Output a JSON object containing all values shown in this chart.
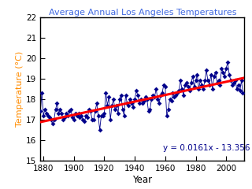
{
  "title": "Average Annual Los Angeles Temperatures",
  "xlabel": "Year",
  "ylabel": "Temperature (°C)",
  "xlim": [
    1878,
    2012
  ],
  "ylim": [
    15,
    22
  ],
  "yticks": [
    15,
    16,
    17,
    18,
    19,
    20,
    21,
    22
  ],
  "xticks": [
    1880,
    1900,
    1920,
    1940,
    1960,
    1980,
    2000
  ],
  "slope": 0.0161,
  "intercept": -13.356,
  "equation": "y = 0.0161x - 13.356",
  "line_color": "red",
  "marker_color": "#00008B",
  "connect_color": "#00008B",
  "background_color": "#ffffff",
  "title_color": "#4169E1",
  "eq_color": "#00008B",
  "years": [
    1878,
    1879,
    1880,
    1881,
    1882,
    1883,
    1884,
    1885,
    1886,
    1887,
    1888,
    1889,
    1890,
    1891,
    1892,
    1893,
    1894,
    1895,
    1896,
    1897,
    1898,
    1899,
    1900,
    1901,
    1902,
    1903,
    1904,
    1905,
    1906,
    1907,
    1908,
    1909,
    1910,
    1911,
    1912,
    1913,
    1914,
    1915,
    1916,
    1917,
    1918,
    1919,
    1920,
    1921,
    1922,
    1923,
    1924,
    1925,
    1926,
    1927,
    1928,
    1929,
    1930,
    1931,
    1932,
    1933,
    1934,
    1935,
    1936,
    1937,
    1938,
    1939,
    1940,
    1941,
    1942,
    1943,
    1944,
    1945,
    1946,
    1947,
    1948,
    1949,
    1950,
    1951,
    1952,
    1953,
    1954,
    1955,
    1956,
    1957,
    1958,
    1959,
    1960,
    1961,
    1962,
    1963,
    1964,
    1965,
    1966,
    1967,
    1968,
    1969,
    1970,
    1971,
    1972,
    1973,
    1974,
    1975,
    1976,
    1977,
    1978,
    1979,
    1980,
    1981,
    1982,
    1983,
    1984,
    1985,
    1986,
    1987,
    1988,
    1989,
    1990,
    1991,
    1992,
    1993,
    1994,
    1995,
    1996,
    1997,
    1998,
    1999,
    2000,
    2001,
    2002,
    2003,
    2004,
    2005,
    2006,
    2007,
    2008,
    2009,
    2010,
    2011
  ],
  "temps": [
    17.4,
    18.3,
    17.2,
    17.5,
    17.3,
    17.2,
    17.1,
    17.0,
    16.8,
    17.0,
    17.5,
    17.8,
    17.3,
    17.5,
    17.3,
    17.0,
    17.1,
    17.3,
    17.2,
    17.4,
    17.5,
    17.1,
    17.0,
    17.3,
    17.2,
    17.3,
    17.1,
    17.2,
    17.0,
    16.9,
    17.2,
    17.1,
    17.5,
    17.4,
    17.0,
    17.0,
    17.4,
    17.8,
    17.2,
    16.5,
    17.2,
    17.2,
    17.3,
    18.3,
    17.7,
    18.1,
    17.0,
    17.7,
    18.0,
    17.5,
    17.7,
    17.3,
    18.0,
    18.2,
    17.5,
    17.2,
    18.2,
    17.8,
    17.7,
    18.0,
    17.8,
    17.6,
    18.0,
    18.4,
    18.2,
    17.8,
    18.0,
    17.8,
    17.9,
    18.1,
    18.0,
    17.4,
    17.5,
    18.0,
    18.2,
    18.1,
    18.5,
    18.0,
    17.8,
    18.2,
    18.3,
    18.7,
    18.6,
    17.2,
    17.5,
    18.0,
    17.9,
    18.3,
    18.1,
    18.2,
    18.3,
    18.4,
    18.9,
    18.5,
    18.2,
    18.7,
    18.8,
    18.6,
    18.4,
    18.8,
    19.1,
    18.6,
    18.9,
    19.2,
    18.5,
    18.9,
    18.7,
    18.5,
    18.9,
    19.4,
    18.9,
    18.7,
    19.2,
    18.5,
    19.1,
    19.3,
    18.8,
    18.9,
    18.7,
    19.5,
    19.3,
    19.1,
    19.5,
    19.8,
    19.2,
    18.9,
    18.7,
    18.8,
    18.9,
    18.5,
    18.7,
    18.4,
    18.9,
    18.3
  ]
}
